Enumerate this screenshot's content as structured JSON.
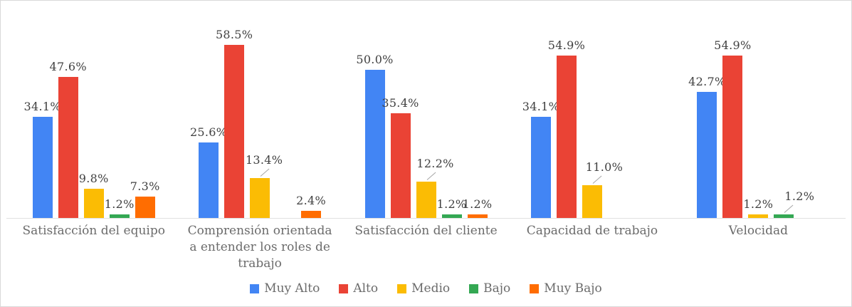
{
  "frame": {
    "background": "#ffffff",
    "border_color": "#d9d9d9"
  },
  "chart_data": {
    "type": "bar",
    "title": "",
    "xlabel": "",
    "ylabel": "",
    "ylim": [
      0,
      70
    ],
    "grid": false,
    "legend_position": "bottom",
    "axis_line_color": "#e0e0e0",
    "annotation_color": "#404040",
    "category_label_color": "#6b6b6b",
    "legend_label_color": "#6b6b6b",
    "value_suffix": "%",
    "categories": [
      "Satisfacción del equipo",
      "Comprensión orientada a entender los roles de trabajo",
      "Satisfacción del cliente",
      "Capacidad de trabajo",
      "Velocidad"
    ],
    "series": [
      {
        "name": "Muy Alto",
        "color": "#4285F4",
        "values": [
          34.1,
          25.6,
          50.0,
          34.1,
          42.7
        ]
      },
      {
        "name": "Alto",
        "color": "#EA4335",
        "values": [
          47.6,
          58.5,
          35.4,
          54.9,
          54.9
        ]
      },
      {
        "name": "Medio",
        "color": "#FBBC04",
        "values": [
          9.8,
          13.4,
          12.2,
          11.0,
          1.2
        ]
      },
      {
        "name": "Bajo",
        "color": "#34A853",
        "values": [
          1.2,
          0,
          1.2,
          0,
          1.2
        ]
      },
      {
        "name": "Muy Bajo",
        "color": "#FF6D01",
        "values": [
          7.3,
          2.4,
          1.2,
          0,
          0
        ]
      }
    ],
    "annotation_leaders": [
      {
        "category_index": 1,
        "series_index": 2,
        "dx": 6
      },
      {
        "category_index": 2,
        "series_index": 2,
        "dx": 13
      },
      {
        "category_index": 3,
        "series_index": 2,
        "dx": 17
      },
      {
        "category_index": 4,
        "series_index": 3,
        "dx": 22
      }
    ]
  }
}
